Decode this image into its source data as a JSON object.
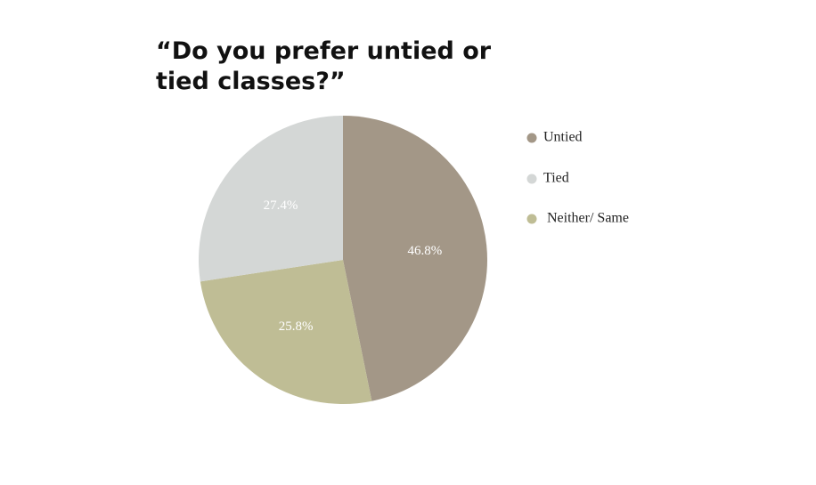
{
  "chart_data": {
    "type": "pie",
    "title": "“Do you prefer untied or tied classes?”",
    "categories": [
      "Untied",
      "Neither/ Same",
      "Tied"
    ],
    "values": [
      46.8,
      25.8,
      27.4
    ],
    "value_labels": [
      "46.8%",
      "25.8%",
      "27.4%"
    ],
    "colors": [
      "#a39787",
      "#bfbd95",
      "#d4d7d6"
    ]
  }
}
